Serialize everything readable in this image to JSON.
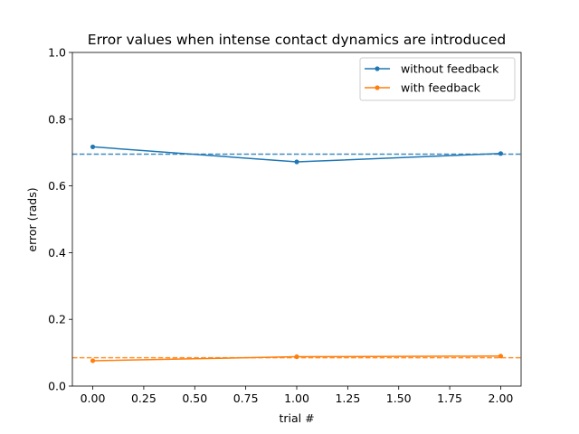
{
  "chart_data": {
    "type": "line",
    "title": "Error values when intense contact dynamics are introduced",
    "xlabel": "trial #",
    "ylabel": "error (rads)",
    "xlim": [
      -0.1,
      2.1
    ],
    "ylim": [
      0.0,
      1.0
    ],
    "xticks": [
      0.0,
      0.25,
      0.5,
      0.75,
      1.0,
      1.25,
      1.5,
      1.75,
      2.0
    ],
    "xtick_labels": [
      "0.00",
      "0.25",
      "0.50",
      "0.75",
      "1.00",
      "1.25",
      "1.50",
      "1.75",
      "2.00"
    ],
    "yticks": [
      0.0,
      0.2,
      0.4,
      0.6,
      0.8,
      1.0
    ],
    "ytick_labels": [
      "0.0",
      "0.2",
      "0.4",
      "0.6",
      "0.8",
      "1.0"
    ],
    "grid": false,
    "legend_position": "top-right",
    "x": [
      0,
      1,
      2
    ],
    "series": [
      {
        "name": "without feedback",
        "values": [
          0.717,
          0.672,
          0.697
        ],
        "color": "#1f77b4",
        "mean": 0.695
      },
      {
        "name": "with feedback",
        "values": [
          0.076,
          0.088,
          0.09
        ],
        "color": "#ff7f0e",
        "mean": 0.085
      }
    ]
  }
}
